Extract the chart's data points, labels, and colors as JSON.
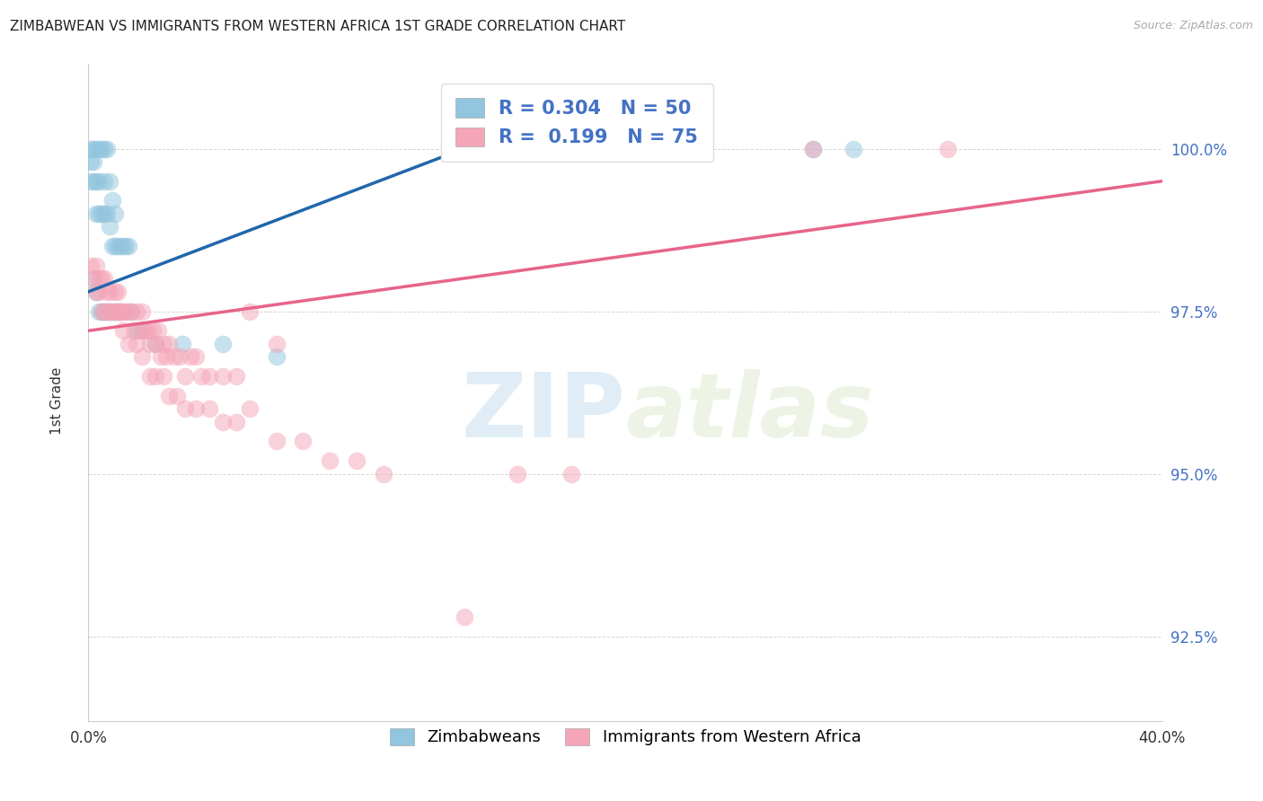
{
  "title": "ZIMBABWEAN VS IMMIGRANTS FROM WESTERN AFRICA 1ST GRADE CORRELATION CHART",
  "source": "Source: ZipAtlas.com",
  "ylabel": "1st Grade",
  "ytick_values": [
    92.5,
    95.0,
    97.5,
    100.0
  ],
  "xlim": [
    0.0,
    40.0
  ],
  "ylim": [
    91.2,
    101.3
  ],
  "r_blue": "0.304",
  "n_blue": "50",
  "r_pink": "0.199",
  "n_pink": "75",
  "blue_color": "#92c5de",
  "blue_line_color": "#2166ac",
  "pink_color": "#f4a5b8",
  "pink_line_color": "#e8648a",
  "legend_blue_label": "Zimbabweans",
  "legend_pink_label": "Immigrants from Western Africa",
  "blue_points_x": [
    0.1,
    0.1,
    0.1,
    0.2,
    0.2,
    0.2,
    0.3,
    0.3,
    0.3,
    0.4,
    0.4,
    0.4,
    0.5,
    0.5,
    0.6,
    0.6,
    0.6,
    0.7,
    0.7,
    0.8,
    0.8,
    0.9,
    0.9,
    1.0,
    1.0,
    1.1,
    1.2,
    1.3,
    1.4,
    1.5,
    0.2,
    0.3,
    0.4,
    0.5,
    0.6,
    0.7,
    0.8,
    0.9,
    1.0,
    1.1,
    1.2,
    1.6,
    1.8,
    2.0,
    2.5,
    3.5,
    5.0,
    7.0,
    27.0,
    28.5
  ],
  "blue_points_y": [
    100.0,
    99.8,
    99.5,
    100.0,
    99.8,
    99.5,
    100.0,
    99.5,
    99.0,
    100.0,
    99.5,
    99.0,
    100.0,
    99.0,
    100.0,
    99.5,
    99.0,
    100.0,
    99.0,
    99.5,
    98.8,
    99.2,
    98.5,
    99.0,
    98.5,
    98.5,
    98.5,
    98.5,
    98.5,
    98.5,
    98.0,
    97.8,
    97.5,
    97.5,
    97.5,
    97.5,
    97.5,
    97.5,
    97.5,
    97.5,
    97.5,
    97.5,
    97.2,
    97.2,
    97.0,
    97.0,
    97.0,
    96.8,
    100.0,
    100.0
  ],
  "pink_points_x": [
    0.1,
    0.2,
    0.3,
    0.3,
    0.4,
    0.4,
    0.5,
    0.5,
    0.6,
    0.6,
    0.7,
    0.7,
    0.8,
    0.8,
    0.9,
    1.0,
    1.0,
    1.1,
    1.1,
    1.2,
    1.2,
    1.3,
    1.4,
    1.5,
    1.6,
    1.7,
    1.8,
    1.9,
    2.0,
    2.1,
    2.2,
    2.3,
    2.4,
    2.5,
    2.6,
    2.7,
    2.8,
    2.9,
    3.0,
    3.2,
    3.4,
    3.6,
    3.8,
    4.0,
    4.2,
    4.5,
    5.0,
    5.5,
    6.0,
    7.0,
    1.3,
    1.5,
    1.8,
    2.0,
    2.3,
    2.5,
    2.8,
    3.0,
    3.3,
    3.6,
    4.0,
    4.5,
    5.0,
    5.5,
    6.0,
    7.0,
    8.0,
    9.0,
    10.0,
    11.0,
    14.0,
    16.0,
    18.0,
    27.0,
    32.0
  ],
  "pink_points_y": [
    98.2,
    98.0,
    98.2,
    97.8,
    98.0,
    97.8,
    98.0,
    97.5,
    98.0,
    97.5,
    97.8,
    97.5,
    97.8,
    97.5,
    97.5,
    97.8,
    97.5,
    97.8,
    97.5,
    97.5,
    97.5,
    97.5,
    97.5,
    97.5,
    97.5,
    97.2,
    97.5,
    97.2,
    97.5,
    97.2,
    97.2,
    97.0,
    97.2,
    97.0,
    97.2,
    96.8,
    97.0,
    96.8,
    97.0,
    96.8,
    96.8,
    96.5,
    96.8,
    96.8,
    96.5,
    96.5,
    96.5,
    96.5,
    97.5,
    97.0,
    97.2,
    97.0,
    97.0,
    96.8,
    96.5,
    96.5,
    96.5,
    96.2,
    96.2,
    96.0,
    96.0,
    96.0,
    95.8,
    95.8,
    96.0,
    95.5,
    95.5,
    95.2,
    95.2,
    95.0,
    92.8,
    95.0,
    95.0,
    100.0,
    100.0
  ],
  "watermark_text": "ZIPatlas",
  "background_color": "#ffffff"
}
